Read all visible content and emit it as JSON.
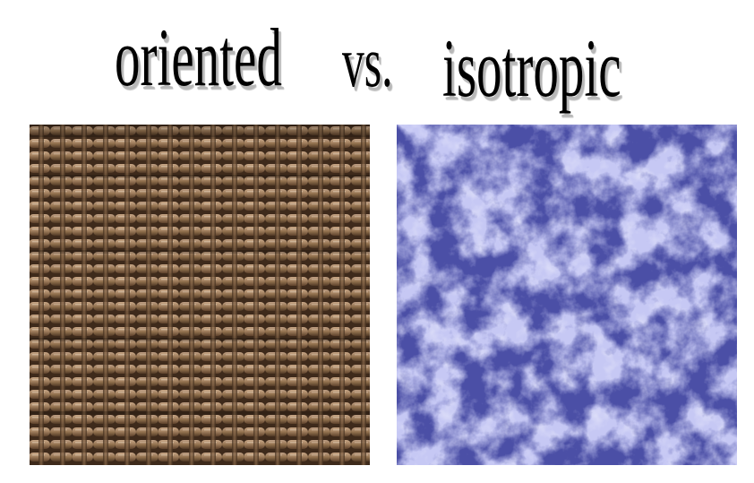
{
  "headline": {
    "left_word": "oriented",
    "connector": "vs.",
    "right_word": "isotropic"
  },
  "panels": [
    {
      "texture": "woven wicker",
      "color": "#8a6a4e"
    },
    {
      "texture": "clouds",
      "color": "#c4c6f2"
    }
  ]
}
